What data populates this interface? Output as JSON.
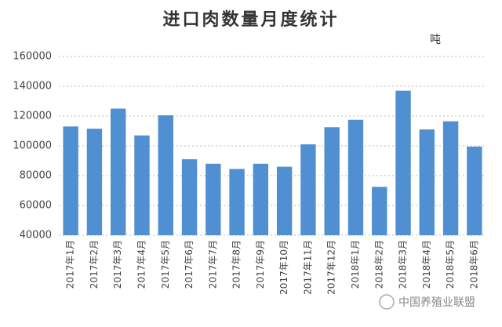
{
  "chart_data": {
    "type": "bar",
    "title": "进口肉数量月度统计",
    "unit": "吨",
    "watermark": "中国养殖业联盟",
    "categories": [
      "2017年1月",
      "2017年2月",
      "2017年3月",
      "2017年4月",
      "2017年5月",
      "2017年6月",
      "2017年7月",
      "2017年8月",
      "2017年9月",
      "2017年10月",
      "2017年11月",
      "2017年12月",
      "2018年1月",
      "2018年2月",
      "2018年3月",
      "2018年4月",
      "2018年5月",
      "2018年6月"
    ],
    "values": [
      113000,
      111500,
      125000,
      107000,
      120500,
      91000,
      88000,
      84500,
      88000,
      86000,
      101000,
      112500,
      117500,
      72500,
      137000,
      111000,
      116500,
      99500
    ],
    "color": "#4f8fd2",
    "ylim": [
      40000,
      160000
    ],
    "yticks": [
      40000,
      60000,
      80000,
      100000,
      120000,
      140000,
      160000
    ],
    "grid": true
  }
}
